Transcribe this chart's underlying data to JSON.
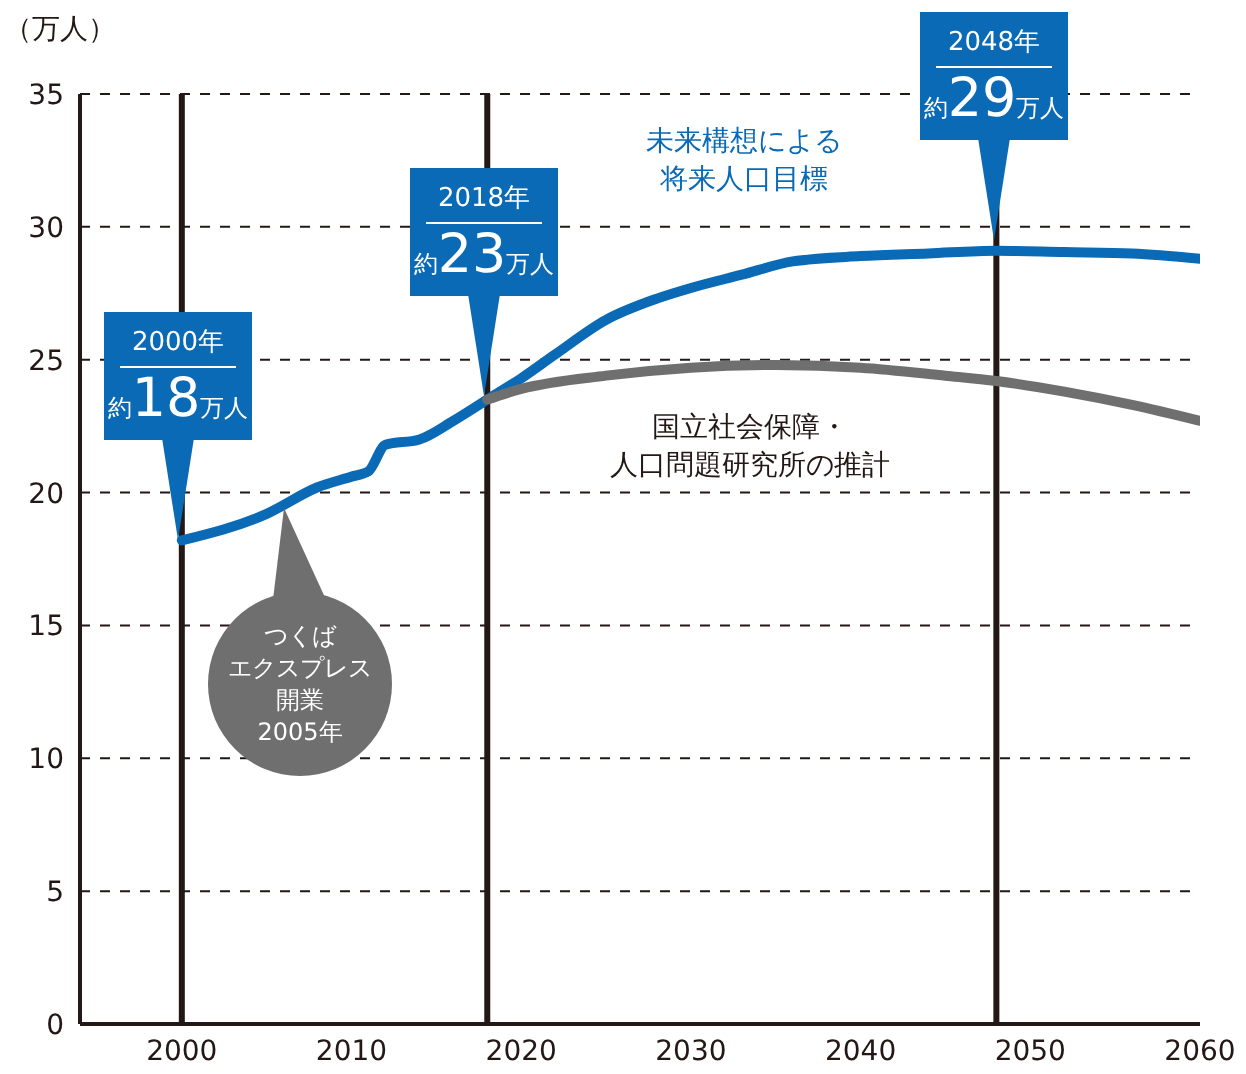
{
  "chart_data": {
    "type": "line",
    "ylabel": "（万人）",
    "xlim": [
      1994,
      2060
    ],
    "xticks": [
      2000,
      2010,
      2020,
      2030,
      2040,
      2050,
      2060
    ],
    "ylim": [
      0,
      35
    ],
    "yticks": [
      0,
      5,
      10,
      15,
      20,
      25,
      30,
      35
    ],
    "grid": "y",
    "marker": "none",
    "line_style": "solid",
    "series": [
      {
        "name": "未来構想による将来人口目標",
        "color": "#0a6ab5",
        "x": [
          2000,
          2005,
          2008,
          2010,
          2011,
          2012,
          2014,
          2016,
          2018,
          2020,
          2022,
          2025,
          2028,
          2030,
          2033,
          2036,
          2040,
          2044,
          2048,
          2052,
          2056,
          2060
        ],
        "values": [
          18.2,
          19.2,
          20.2,
          20.6,
          20.8,
          21.8,
          22.0,
          22.7,
          23.5,
          24.3,
          25.2,
          26.5,
          27.3,
          27.7,
          28.2,
          28.7,
          28.9,
          29.0,
          29.1,
          29.05,
          29.0,
          28.8
        ]
      },
      {
        "name": "国立社会保障・人口問題研究所の推計",
        "color": "#6f6f6f",
        "x": [
          2018,
          2020,
          2025,
          2030,
          2035,
          2040,
          2045,
          2048,
          2052,
          2056,
          2060
        ],
        "values": [
          23.5,
          23.9,
          24.4,
          24.7,
          24.8,
          24.7,
          24.4,
          24.2,
          23.8,
          23.3,
          22.7
        ]
      }
    ],
    "ref_lines": [
      {
        "axis": "x",
        "value": 2000,
        "color": "#231815"
      },
      {
        "axis": "x",
        "value": 2018,
        "color": "#231815"
      },
      {
        "axis": "x",
        "value": 2048,
        "color": "#231815"
      }
    ],
    "annotations": [
      "2000年約18万人",
      "2018年約23万人",
      "2048年約29万人",
      "つくばエクスプレス開業2005年"
    ]
  }
}
